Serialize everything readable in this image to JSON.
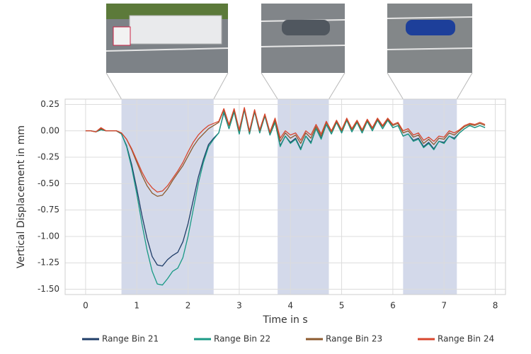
{
  "chart_data": {
    "type": "line",
    "xlabel": "Time in s",
    "ylabel": "Vertical Displacement in mm",
    "xlim": [
      -0.4,
      8.2
    ],
    "ylim": [
      -1.55,
      0.3
    ],
    "xticks": [
      0,
      1,
      2,
      3,
      4,
      5,
      6,
      7,
      8
    ],
    "yticks": [
      0.25,
      {
        "value": 0,
        "label": "0.00"
      },
      -0.25,
      {
        "value": -0.5,
        "label": "-0.50"
      },
      -0.75,
      {
        "value": -1,
        "label": "-1.00"
      },
      -1.25,
      {
        "value": -1.5,
        "label": "-1.50"
      }
    ],
    "grid": true,
    "highlight_color": "#d3d9ea",
    "highlight_spans": [
      [
        0.7,
        2.5
      ],
      [
        3.75,
        4.75
      ],
      [
        6.2,
        7.25
      ]
    ],
    "x": [
      0.0,
      0.1,
      0.2,
      0.3,
      0.4,
      0.5,
      0.6,
      0.7,
      0.8,
      0.9,
      1.0,
      1.1,
      1.2,
      1.3,
      1.4,
      1.5,
      1.6,
      1.7,
      1.8,
      1.9,
      2.0,
      2.1,
      2.2,
      2.3,
      2.4,
      2.5,
      2.6,
      2.7,
      2.8,
      2.9,
      3.0,
      3.1,
      3.2,
      3.3,
      3.4,
      3.5,
      3.6,
      3.7,
      3.8,
      3.9,
      4.0,
      4.1,
      4.2,
      4.3,
      4.4,
      4.5,
      4.6,
      4.7,
      4.8,
      4.9,
      5.0,
      5.1,
      5.2,
      5.3,
      5.4,
      5.5,
      5.6,
      5.7,
      5.8,
      5.9,
      6.0,
      6.1,
      6.2,
      6.3,
      6.4,
      6.5,
      6.6,
      6.7,
      6.8,
      6.9,
      7.0,
      7.1,
      7.2,
      7.3,
      7.4,
      7.5,
      7.6,
      7.7,
      7.8
    ],
    "series": [
      {
        "name": "Range Bin 21",
        "color": "#1f3d68",
        "values": [
          0,
          0,
          -0.01,
          0.01,
          0,
          0,
          0,
          -0.03,
          -0.14,
          -0.32,
          -0.55,
          -0.8,
          -1.02,
          -1.19,
          -1.27,
          -1.28,
          -1.22,
          -1.18,
          -1.15,
          -1.05,
          -0.88,
          -0.66,
          -0.44,
          -0.27,
          -0.13,
          -0.07,
          -0.02,
          0.17,
          0.02,
          0.18,
          -0.03,
          0.2,
          -0.03,
          0.18,
          -0.02,
          0.14,
          -0.04,
          0.08,
          -0.14,
          -0.05,
          -0.11,
          -0.07,
          -0.17,
          -0.05,
          -0.11,
          0.02,
          -0.07,
          0.06,
          -0.03,
          0.08,
          -0.02,
          0.1,
          -0.01,
          0.08,
          -0.02,
          0.09,
          0,
          0.1,
          0.02,
          0.1,
          0.03,
          0.05,
          -0.05,
          -0.03,
          -0.09,
          -0.07,
          -0.15,
          -0.11,
          -0.17,
          -0.1,
          -0.11,
          -0.05,
          -0.07,
          -0.02,
          0.02,
          0.05,
          0.03,
          0.05,
          0.03
        ]
      },
      {
        "name": "Range Bin 22",
        "color": "#1a9a85",
        "values": [
          0,
          0,
          -0.01,
          0.01,
          0,
          0,
          0,
          -0.03,
          -0.15,
          -0.35,
          -0.6,
          -0.88,
          -1.13,
          -1.33,
          -1.45,
          -1.46,
          -1.4,
          -1.33,
          -1.3,
          -1.2,
          -1.0,
          -0.75,
          -0.5,
          -0.3,
          -0.15,
          -0.08,
          -0.02,
          0.18,
          0.02,
          0.18,
          -0.03,
          0.2,
          -0.03,
          0.18,
          -0.02,
          0.14,
          -0.04,
          0.08,
          -0.15,
          -0.05,
          -0.12,
          -0.08,
          -0.18,
          -0.05,
          -0.12,
          0.02,
          -0.08,
          0.06,
          -0.03,
          0.08,
          -0.02,
          0.1,
          -0.01,
          0.08,
          -0.02,
          0.09,
          0,
          0.1,
          0.02,
          0.1,
          0.03,
          0.05,
          -0.05,
          -0.03,
          -0.1,
          -0.08,
          -0.16,
          -0.12,
          -0.18,
          -0.1,
          -0.12,
          -0.05,
          -0.08,
          -0.02,
          0.02,
          0.05,
          0.03,
          0.05,
          0.03
        ]
      },
      {
        "name": "Range Bin 23",
        "color": "#8c5a2e",
        "values": [
          0,
          0,
          -0.01,
          0.02,
          0,
          0,
          0,
          -0.02,
          -0.08,
          -0.18,
          -0.3,
          -0.42,
          -0.52,
          -0.59,
          -0.62,
          -0.61,
          -0.55,
          -0.47,
          -0.4,
          -0.33,
          -0.24,
          -0.15,
          -0.08,
          -0.03,
          0.02,
          0.05,
          0.08,
          0.2,
          0.05,
          0.2,
          0,
          0.21,
          -0.01,
          0.19,
          0,
          0.15,
          -0.02,
          0.1,
          -0.1,
          -0.02,
          -0.07,
          -0.04,
          -0.12,
          -0.02,
          -0.07,
          0.04,
          -0.05,
          0.08,
          -0.01,
          0.09,
          0,
          0.11,
          0.01,
          0.09,
          0,
          0.1,
          0.02,
          0.11,
          0.04,
          0.11,
          0.05,
          0.07,
          -0.02,
          0,
          -0.06,
          -0.04,
          -0.12,
          -0.08,
          -0.13,
          -0.07,
          -0.08,
          -0.02,
          -0.04,
          0,
          0.04,
          0.06,
          0.05,
          0.07,
          0.05
        ]
      },
      {
        "name": "Range Bin 24",
        "color": "#d8462d",
        "values": [
          0,
          0,
          -0.01,
          0.03,
          0,
          0,
          0,
          -0.02,
          -0.08,
          -0.17,
          -0.28,
          -0.39,
          -0.48,
          -0.54,
          -0.58,
          -0.57,
          -0.52,
          -0.45,
          -0.38,
          -0.3,
          -0.2,
          -0.11,
          -0.04,
          0.01,
          0.05,
          0.07,
          0.09,
          0.21,
          0.06,
          0.21,
          0.01,
          0.22,
          0,
          0.2,
          0.01,
          0.16,
          -0.01,
          0.12,
          -0.07,
          0,
          -0.04,
          -0.02,
          -0.09,
          0,
          -0.04,
          0.06,
          -0.03,
          0.09,
          0,
          0.1,
          0.01,
          0.12,
          0.02,
          0.1,
          0.01,
          0.11,
          0.03,
          0.12,
          0.05,
          0.12,
          0.06,
          0.08,
          0,
          0.02,
          -0.04,
          -0.02,
          -0.09,
          -0.06,
          -0.1,
          -0.05,
          -0.06,
          0,
          -0.02,
          0.01,
          0.05,
          0.07,
          0.06,
          0.08,
          0.06
        ]
      }
    ],
    "legend": "bottom"
  }
}
